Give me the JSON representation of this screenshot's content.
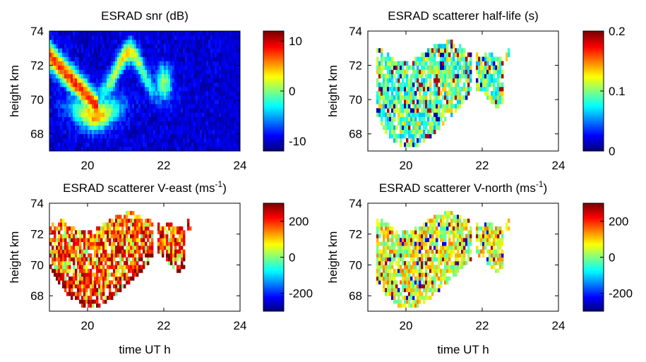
{
  "chart_data": [
    {
      "type": "heatmap",
      "title": "ESRAD snr (dB)",
      "xlabel": "",
      "ylabel": "height km",
      "xlim": [
        19,
        24
      ],
      "ylim": [
        67,
        74
      ],
      "x_ticks": [
        "20",
        "22",
        "24"
      ],
      "y_ticks": [
        "68",
        "70",
        "72",
        "74"
      ],
      "colorbar": {
        "range": [
          -12,
          12
        ],
        "ticks": [
          "10",
          "0",
          "-10"
        ],
        "colormap": "jet"
      },
      "data_extent": {
        "x": [
          19.0,
          23.5
        ],
        "y": [
          67.0,
          74.0
        ]
      },
      "background": "filled low-value field (about -10 dB) over the whole panel",
      "features": [
        {
          "kind": "layer",
          "description": "strong echo band descending from ~72.5 km at 19 h to ~68 km near 20 h",
          "value_db": 10
        },
        {
          "kind": "layer",
          "description": "secondary echo bands near 70-73 km between 20.5 and 21.7 h",
          "value_db": 8
        },
        {
          "kind": "layer",
          "description": "weak echo near 70-72 km around 22 h",
          "value_db": 6
        }
      ]
    },
    {
      "type": "heatmap",
      "title": "ESRAD scatterer half-life (s)",
      "xlabel": "",
      "ylabel": "height km",
      "xlim": [
        19,
        24
      ],
      "ylim": [
        67,
        74
      ],
      "x_ticks": [
        "20",
        "22",
        "24"
      ],
      "y_ticks": [
        "68",
        "70",
        "72",
        "74"
      ],
      "colorbar": {
        "range": [
          0,
          0.2
        ],
        "ticks": [
          "0.2",
          "0.1",
          "0"
        ],
        "colormap": "jet"
      },
      "data_extent": {
        "x": [
          19.2,
          23.2
        ],
        "y": [
          67.2,
          73.6
        ]
      },
      "background": "white (no data) outside the scatterer region",
      "typical_value": 0.09
    },
    {
      "type": "heatmap",
      "title": "ESRAD scatterer V-east (ms",
      "title_sup": "-1",
      "title_tail": ")",
      "xlabel": "time UT h",
      "ylabel": "height km",
      "xlim": [
        19,
        24
      ],
      "ylim": [
        67,
        74
      ],
      "x_ticks": [
        "20",
        "22",
        "24"
      ],
      "y_ticks": [
        "68",
        "70",
        "72",
        "74"
      ],
      "colorbar": {
        "range": [
          -300,
          300
        ],
        "ticks": [
          "200",
          "0",
          "-200"
        ],
        "colormap": "jet"
      },
      "data_extent": {
        "x": [
          19.0,
          23.2
        ],
        "y": [
          67.2,
          73.6
        ]
      },
      "background": "white (no data) outside the scatterer region",
      "typical_value": 180
    },
    {
      "type": "heatmap",
      "title": "ESRAD scatterer V-north (ms",
      "title_sup": "-1",
      "title_tail": ")",
      "xlabel": "time UT h",
      "ylabel": "height km",
      "xlim": [
        19,
        24
      ],
      "ylim": [
        67,
        74
      ],
      "x_ticks": [
        "20",
        "22",
        "24"
      ],
      "y_ticks": [
        "68",
        "70",
        "72",
        "74"
      ],
      "colorbar": {
        "range": [
          -300,
          300
        ],
        "ticks": [
          "200",
          "0",
          "-200"
        ],
        "colormap": "jet"
      },
      "data_extent": {
        "x": [
          19.2,
          23.2
        ],
        "y": [
          67.2,
          73.6
        ]
      },
      "background": "white (no data) outside the scatterer region",
      "typical_value": 60
    }
  ]
}
